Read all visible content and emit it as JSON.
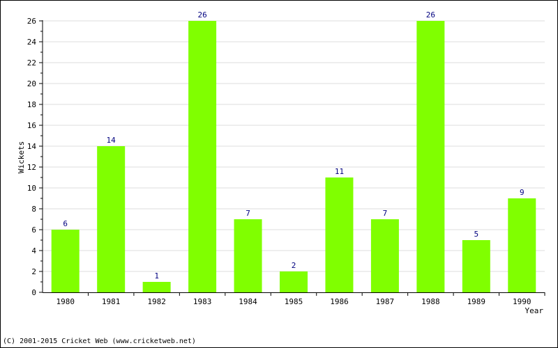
{
  "chart_data": {
    "type": "bar",
    "categories": [
      "1980",
      "1981",
      "1982",
      "1983",
      "1984",
      "1985",
      "1986",
      "1987",
      "1988",
      "1989",
      "1990"
    ],
    "values": [
      6,
      14,
      1,
      26,
      7,
      2,
      11,
      7,
      26,
      5,
      9
    ],
    "xlabel": "Year",
    "ylabel": "Wickets",
    "ylim": [
      0,
      26
    ],
    "yticks": [
      0,
      2,
      4,
      6,
      8,
      10,
      12,
      14,
      16,
      18,
      20,
      22,
      24,
      26
    ],
    "grid": true,
    "bar_color": "#80ff00",
    "label_color": "#00007f"
  },
  "footer": {
    "copyright": "(C) 2001-2015 Cricket Web (www.cricketweb.net)"
  }
}
